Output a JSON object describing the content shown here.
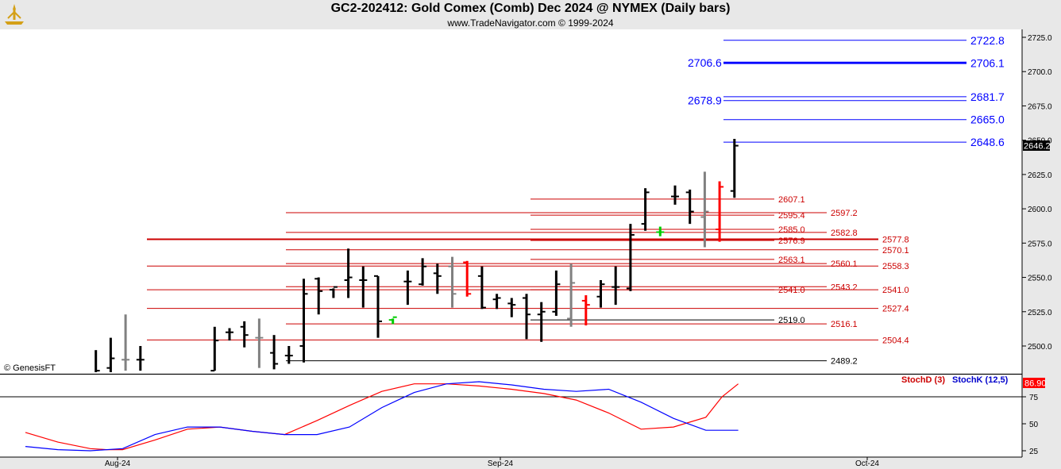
{
  "header": {
    "title": "GC2-202412:  Gold Comex (Comb) Dec 2024 @ NYMEX  (Daily bars)",
    "subtitle": "www.TradeNavigator.com © 1999-2024"
  },
  "copyright_label": "© GenesisFT",
  "last_price_label": "2646.2",
  "colors": {
    "up": "#000000",
    "down_red": "#ff0000",
    "neutral_gray": "#808080",
    "green": "#00cc00",
    "blue_level": "#0000ff",
    "red_level": "#cc0000"
  },
  "chart_data": [
    {
      "type": "bar",
      "subtype": "ohlc",
      "ylim": [
        2485,
        2730
      ],
      "y_ticks": [
        "2500.0",
        "2525.0",
        "2550.0",
        "2575.0",
        "2600.0",
        "2625.0",
        "2650.0",
        "2675.0",
        "2700.0",
        "2725.0"
      ],
      "x_labels": [
        "Aug-24",
        "Sep-24",
        "Oct-24"
      ],
      "bars": [
        {
          "d": 1,
          "o": 2480,
          "h": 2497,
          "l": 2480,
          "c": 2482,
          "col": "black"
        },
        {
          "d": 2,
          "o": 2484,
          "h": 2506,
          "l": 2480,
          "c": 2491,
          "col": "black"
        },
        {
          "d": 3,
          "o": 2490,
          "h": 2523,
          "l": 2482,
          "c": 2490,
          "col": "gray"
        },
        {
          "d": 4,
          "o": 2490,
          "h": 2500,
          "l": 2482,
          "c": 2490,
          "col": "black"
        },
        {
          "d": 9,
          "o": 2482,
          "h": 2514,
          "l": 2482,
          "c": 2504,
          "col": "black"
        },
        {
          "d": 10,
          "o": 2510,
          "h": 2513,
          "l": 2504,
          "c": 2510,
          "col": "black"
        },
        {
          "d": 11,
          "o": 2514,
          "h": 2518,
          "l": 2499,
          "c": 2508,
          "col": "black"
        },
        {
          "d": 12,
          "o": 2506,
          "h": 2520,
          "l": 2484,
          "c": 2506,
          "col": "gray"
        },
        {
          "d": 13,
          "o": 2495,
          "h": 2508,
          "l": 2483,
          "c": 2487,
          "col": "black"
        },
        {
          "d": 14,
          "o": 2493,
          "h": 2500,
          "l": 2487,
          "c": 2493,
          "col": "black"
        },
        {
          "d": 15,
          "o": 2500,
          "h": 2549,
          "l": 2488,
          "c": 2538,
          "col": "black"
        },
        {
          "d": 16,
          "o": 2549,
          "h": 2550,
          "l": 2523,
          "c": 2540,
          "col": "black"
        },
        {
          "d": 17,
          "o": 2541,
          "h": 2542,
          "l": 2535,
          "c": 2543,
          "col": "black"
        },
        {
          "d": 18,
          "o": 2548,
          "h": 2571,
          "l": 2535,
          "c": 2550,
          "col": "black"
        },
        {
          "d": 19,
          "o": 2548,
          "h": 2558,
          "l": 2528,
          "c": 2548,
          "col": "black"
        },
        {
          "d": 20,
          "o": 2551,
          "h": 2551,
          "l": 2506,
          "c": 2518,
          "col": "black"
        },
        {
          "d": 21,
          "o": 2519,
          "h": 2520,
          "l": 2516,
          "c": 2521,
          "col": "green"
        },
        {
          "d": 22,
          "o": 2547,
          "h": 2555,
          "l": 2530,
          "c": 2547,
          "col": "black"
        },
        {
          "d": 23,
          "o": 2545,
          "h": 2564,
          "l": 2544,
          "c": 2558,
          "col": "black"
        },
        {
          "d": 24,
          "o": 2553,
          "h": 2560,
          "l": 2538,
          "c": 2551,
          "col": "black"
        },
        {
          "d": 25,
          "o": 2558,
          "h": 2565,
          "l": 2528,
          "c": 2538,
          "col": "gray"
        },
        {
          "d": 26,
          "o": 2561,
          "h": 2562,
          "l": 2536,
          "c": 2538,
          "col": "red"
        },
        {
          "d": 27,
          "o": 2551,
          "h": 2558,
          "l": 2527,
          "c": 2528,
          "col": "black"
        },
        {
          "d": 28,
          "o": 2534,
          "h": 2538,
          "l": 2527,
          "c": 2535,
          "col": "black"
        },
        {
          "d": 29,
          "o": 2531,
          "h": 2535,
          "l": 2521,
          "c": 2530,
          "col": "black"
        },
        {
          "d": 30,
          "o": 2535,
          "h": 2538,
          "l": 2505,
          "c": 2523,
          "col": "black"
        },
        {
          "d": 31,
          "o": 2523,
          "h": 2532,
          "l": 2503,
          "c": 2525,
          "col": "black"
        },
        {
          "d": 32,
          "o": 2525,
          "h": 2555,
          "l": 2522,
          "c": 2545,
          "col": "black"
        },
        {
          "d": 33,
          "o": 2520,
          "h": 2560,
          "l": 2514,
          "c": 2546,
          "col": "gray"
        },
        {
          "d": 34,
          "o": 2533,
          "h": 2537,
          "l": 2515,
          "c": 2530,
          "col": "red"
        },
        {
          "d": 35,
          "o": 2536,
          "h": 2548,
          "l": 2528,
          "c": 2545,
          "col": "black"
        },
        {
          "d": 36,
          "o": 2543,
          "h": 2558,
          "l": 2530,
          "c": 2543,
          "col": "black"
        },
        {
          "d": 37,
          "o": 2542,
          "h": 2589,
          "l": 2540,
          "c": 2581,
          "col": "black"
        },
        {
          "d": 38,
          "o": 2589,
          "h": 2615,
          "l": 2584,
          "c": 2612,
          "col": "black"
        },
        {
          "d": 39,
          "o": 2583,
          "h": 2587,
          "l": 2580,
          "c": 2583,
          "col": "green"
        },
        {
          "d": 40,
          "o": 2609,
          "h": 2617,
          "l": 2603,
          "c": 2609,
          "col": "black"
        },
        {
          "d": 41,
          "o": 2612,
          "h": 2614,
          "l": 2589,
          "c": 2598,
          "col": "black"
        },
        {
          "d": 42,
          "o": 2594,
          "h": 2627,
          "l": 2572,
          "c": 2598,
          "col": "gray"
        },
        {
          "d": 43,
          "o": 2585,
          "h": 2620,
          "l": 2576,
          "c": 2616,
          "col": "red"
        },
        {
          "d": 44,
          "o": 2613,
          "h": 2651,
          "l": 2608,
          "c": 2646,
          "col": "black"
        }
      ],
      "levels": [
        {
          "value": "2722.8",
          "color": "blue",
          "style": "thin"
        },
        {
          "value": "2706.6",
          "color": "blue",
          "style": "thick",
          "label_side": "left"
        },
        {
          "value": "2706.1",
          "color": "blue",
          "style": "thick"
        },
        {
          "value": "2681.7",
          "color": "blue",
          "style": "thin"
        },
        {
          "value": "2678.9",
          "color": "blue",
          "style": "thin",
          "label_side": "left"
        },
        {
          "value": "2665.0",
          "color": "blue",
          "style": "thin"
        },
        {
          "value": "2648.6",
          "color": "blue",
          "style": "thin"
        },
        {
          "value": "2607.1",
          "color": "red",
          "style": "thin"
        },
        {
          "value": "2597.2",
          "color": "red",
          "style": "thin"
        },
        {
          "value": "2595.4",
          "color": "red",
          "style": "thin"
        },
        {
          "value": "2585.0",
          "color": "red",
          "style": "thin"
        },
        {
          "value": "2582.8",
          "color": "red",
          "style": "thin"
        },
        {
          "value": "2577.8",
          "color": "red",
          "style": "thick"
        },
        {
          "value": "2576.9",
          "color": "red",
          "style": "thin"
        },
        {
          "value": "2570.1",
          "color": "red",
          "style": "thin"
        },
        {
          "value": "2563.1",
          "color": "red",
          "style": "thin"
        },
        {
          "value": "2560.1",
          "color": "red",
          "style": "thin"
        },
        {
          "value": "2558.3",
          "color": "red",
          "style": "thin"
        },
        {
          "value": "2543.2",
          "color": "red",
          "style": "thin"
        },
        {
          "value": "2541.0",
          "color": "red",
          "style": "thin"
        },
        {
          "value": "2541.0",
          "color": "red",
          "style": "thin"
        },
        {
          "value": "2527.4",
          "color": "red",
          "style": "thin"
        },
        {
          "value": "2519.0",
          "color": "black",
          "style": "thin"
        },
        {
          "value": "2516.1",
          "color": "red",
          "style": "thin"
        },
        {
          "value": "2504.4",
          "color": "red",
          "style": "thin"
        },
        {
          "value": "2489.2",
          "color": "black",
          "style": "thin"
        }
      ]
    },
    {
      "type": "line",
      "ylim": [
        20,
        95
      ],
      "y_ticks": [
        "25",
        "50",
        "75"
      ],
      "last_value": "86.90",
      "series": [
        {
          "name": "StochD (3)",
          "color": "#ff0000",
          "x": [
            0,
            2,
            4,
            5,
            6,
            8,
            10,
            12,
            14,
            16,
            18,
            20,
            22,
            24,
            26,
            28,
            30,
            32,
            34,
            36,
            38,
            40,
            42,
            43,
            44
          ],
          "values": [
            42,
            33,
            27,
            26,
            26,
            35,
            45,
            47,
            43,
            40,
            53,
            67,
            80,
            87,
            87,
            85,
            82,
            78,
            72,
            60,
            45,
            47,
            56,
            75,
            87
          ]
        },
        {
          "name": "StochK (12,5)",
          "color": "#0000ff",
          "x": [
            0,
            2,
            4,
            6,
            8,
            10,
            12,
            14,
            16,
            18,
            20,
            22,
            24,
            26,
            28,
            30,
            32,
            34,
            36,
            38,
            40,
            42,
            44
          ],
          "values": [
            29,
            26,
            25,
            27,
            40,
            47,
            47,
            43,
            40,
            40,
            47,
            65,
            79,
            87,
            89,
            86,
            82,
            80,
            82,
            70,
            55,
            44,
            44
          ]
        }
      ]
    }
  ]
}
